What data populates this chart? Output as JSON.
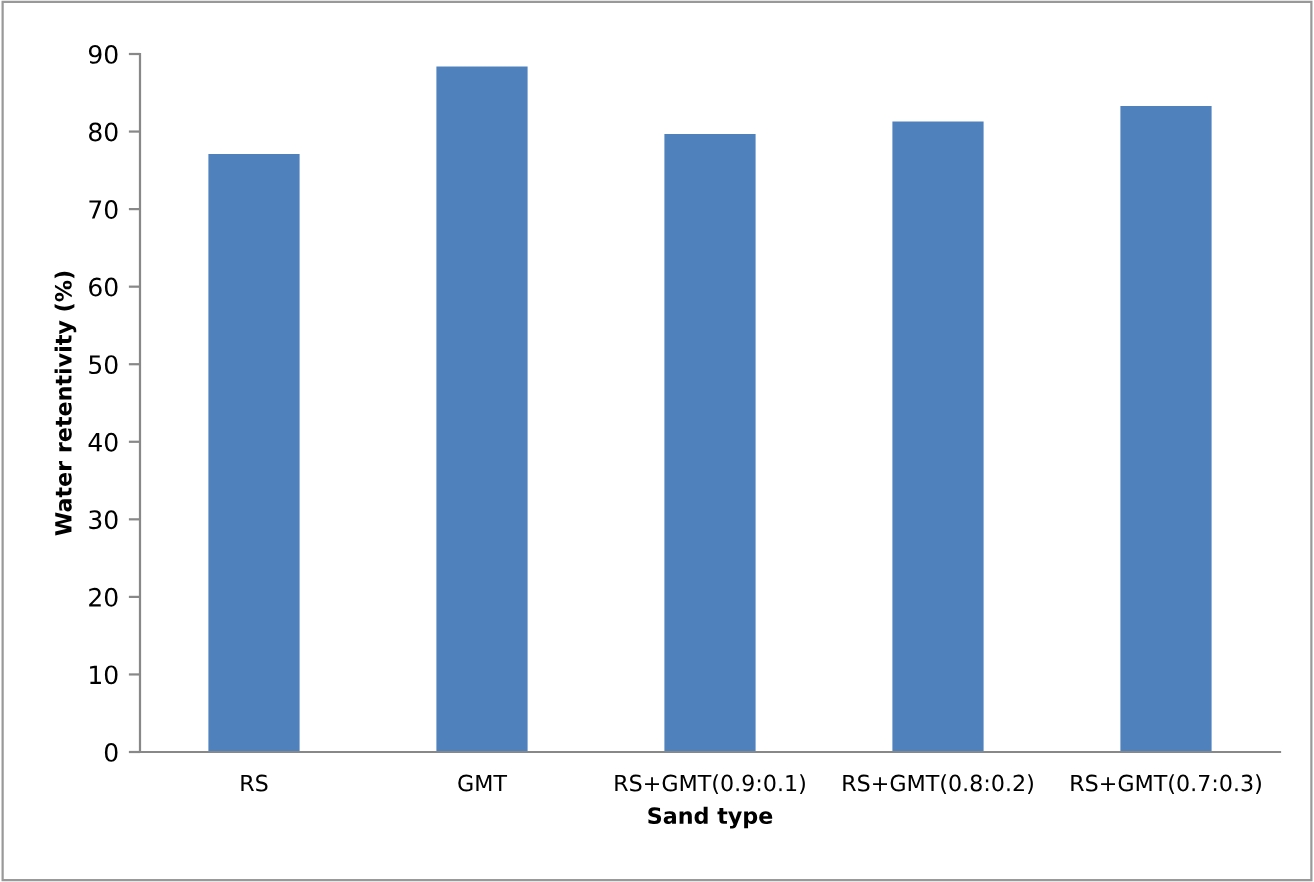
{
  "chart_data": {
    "type": "bar",
    "xlabel": "Sand type",
    "ylabel": "Water retentivity (%)",
    "categories": [
      "RS",
      "GMT",
      "RS+GMT(0.9:0.1)",
      "RS+GMT(0.8:0.2)",
      "RS+GMT(0.7:0.3)"
    ],
    "values": [
      77.1,
      88.4,
      79.7,
      81.3,
      83.3
    ],
    "color": "#4f81bd",
    "ylim": [
      0,
      90
    ],
    "yticks": [
      0,
      10,
      20,
      30,
      40,
      50,
      60,
      70,
      80,
      90
    ],
    "grid": false,
    "legend": false
  }
}
